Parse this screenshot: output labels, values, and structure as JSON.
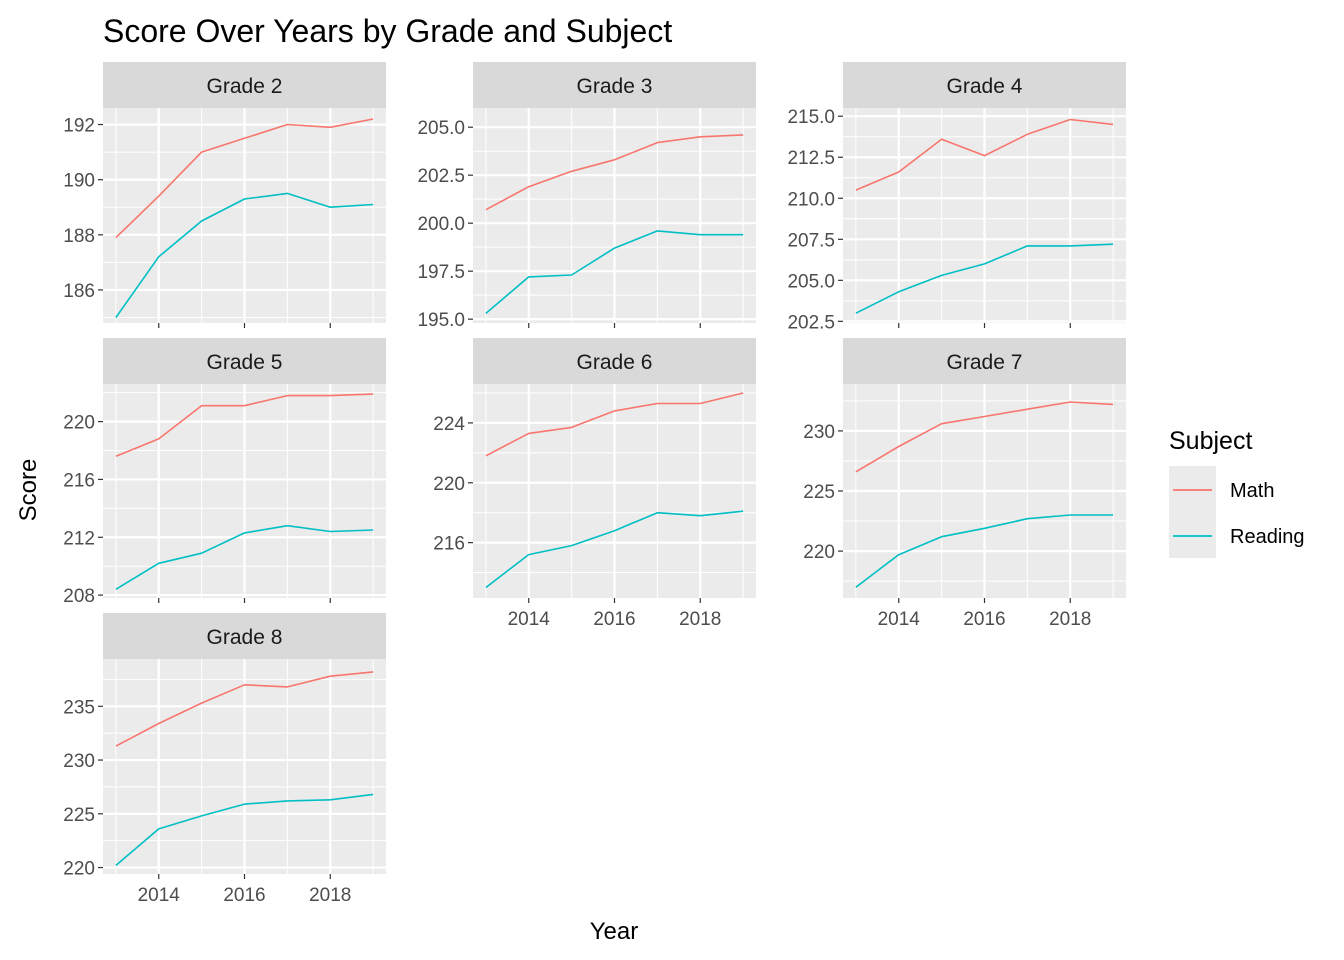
{
  "chart_data": {
    "type": "line",
    "title": "Score Over Years by Grade and Subject",
    "xlabel": "Year",
    "ylabel": "Score",
    "legend": {
      "title": "Subject",
      "placement": "right",
      "entries": [
        {
          "label": "Math",
          "color": "#F8766D"
        },
        {
          "label": "Reading",
          "color": "#00BFC4"
        }
      ]
    },
    "x": [
      2013,
      2014,
      2015,
      2016,
      2017,
      2018,
      2019
    ],
    "x_ticks": [
      2014,
      2016,
      2018
    ],
    "x_tick_labels": [
      "2014",
      "2016",
      "2018"
    ],
    "xlim": [
      2012.7,
      2019.3
    ],
    "grid": true,
    "panels": [
      {
        "strip": "Grade 2",
        "ylim": [
          184.8,
          192.6
        ],
        "y_ticks": [
          186,
          188,
          190,
          192
        ],
        "y_tick_labels": [
          "186",
          "188",
          "190",
          "192"
        ],
        "series": [
          {
            "name": "Math",
            "values": [
              187.9,
              189.4,
              191.0,
              191.5,
              192.0,
              191.9,
              192.2
            ]
          },
          {
            "name": "Reading",
            "values": [
              185.0,
              187.2,
              188.5,
              189.3,
              189.5,
              189.0,
              189.1
            ]
          }
        ]
      },
      {
        "strip": "Grade 3",
        "ylim": [
          194.8,
          206.0
        ],
        "y_ticks": [
          195.0,
          197.5,
          200.0,
          202.5,
          205.0
        ],
        "y_tick_labels": [
          "195.0",
          "197.5",
          "200.0",
          "202.5",
          "205.0"
        ],
        "series": [
          {
            "name": "Math",
            "values": [
              200.7,
              201.9,
              202.7,
              203.3,
              204.2,
              204.5,
              204.6
            ]
          },
          {
            "name": "Reading",
            "values": [
              195.3,
              197.2,
              197.3,
              198.7,
              199.6,
              199.4,
              199.4
            ]
          }
        ]
      },
      {
        "strip": "Grade 4",
        "ylim": [
          202.4,
          215.5
        ],
        "y_ticks": [
          202.5,
          205.0,
          207.5,
          210.0,
          212.5,
          215.0
        ],
        "y_tick_labels": [
          "202.5",
          "205.0",
          "207.5",
          "210.0",
          "212.5",
          "215.0"
        ],
        "series": [
          {
            "name": "Math",
            "values": [
              210.5,
              211.6,
              213.6,
              212.6,
              213.9,
              214.8,
              214.5
            ]
          },
          {
            "name": "Reading",
            "values": [
              203.0,
              204.3,
              205.3,
              206.0,
              207.1,
              207.1,
              207.2
            ]
          }
        ]
      },
      {
        "strip": "Grade 5",
        "ylim": [
          207.8,
          222.6
        ],
        "y_ticks": [
          208,
          212,
          216,
          220
        ],
        "y_tick_labels": [
          "208",
          "212",
          "216",
          "220"
        ],
        "series": [
          {
            "name": "Math",
            "values": [
              217.6,
              218.8,
              221.1,
              221.1,
              221.8,
              221.8,
              221.9
            ]
          },
          {
            "name": "Reading",
            "values": [
              208.4,
              210.2,
              210.9,
              212.3,
              212.8,
              212.4,
              212.5
            ]
          }
        ]
      },
      {
        "strip": "Grade 6",
        "ylim": [
          212.3,
          226.6
        ],
        "y_ticks": [
          216,
          220,
          224
        ],
        "y_tick_labels": [
          "216",
          "220",
          "224"
        ],
        "series": [
          {
            "name": "Math",
            "values": [
              221.8,
              223.3,
              223.7,
              224.8,
              225.3,
              225.3,
              226.0
            ]
          },
          {
            "name": "Reading",
            "values": [
              213.0,
              215.2,
              215.8,
              216.8,
              218.0,
              217.8,
              218.1
            ]
          }
        ]
      },
      {
        "strip": "Grade 7",
        "ylim": [
          216.1,
          233.9
        ],
        "y_ticks": [
          220,
          225,
          230
        ],
        "y_tick_labels": [
          "220",
          "225",
          "230"
        ],
        "series": [
          {
            "name": "Math",
            "values": [
              226.6,
              228.7,
              230.6,
              231.2,
              231.8,
              232.4,
              232.2
            ]
          },
          {
            "name": "Reading",
            "values": [
              217.0,
              219.7,
              221.2,
              221.9,
              222.7,
              223.0,
              223.0
            ]
          }
        ]
      },
      {
        "strip": "Grade 8",
        "ylim": [
          219.4,
          239.4
        ],
        "y_ticks": [
          220,
          225,
          230,
          235
        ],
        "y_tick_labels": [
          "220",
          "225",
          "230",
          "235"
        ],
        "series": [
          {
            "name": "Math",
            "values": [
              231.3,
              233.4,
              235.3,
              237.0,
              236.8,
              237.8,
              238.2
            ]
          },
          {
            "name": "Reading",
            "values": [
              220.2,
              223.6,
              224.8,
              225.9,
              226.2,
              226.3,
              226.8
            ]
          }
        ]
      }
    ]
  }
}
